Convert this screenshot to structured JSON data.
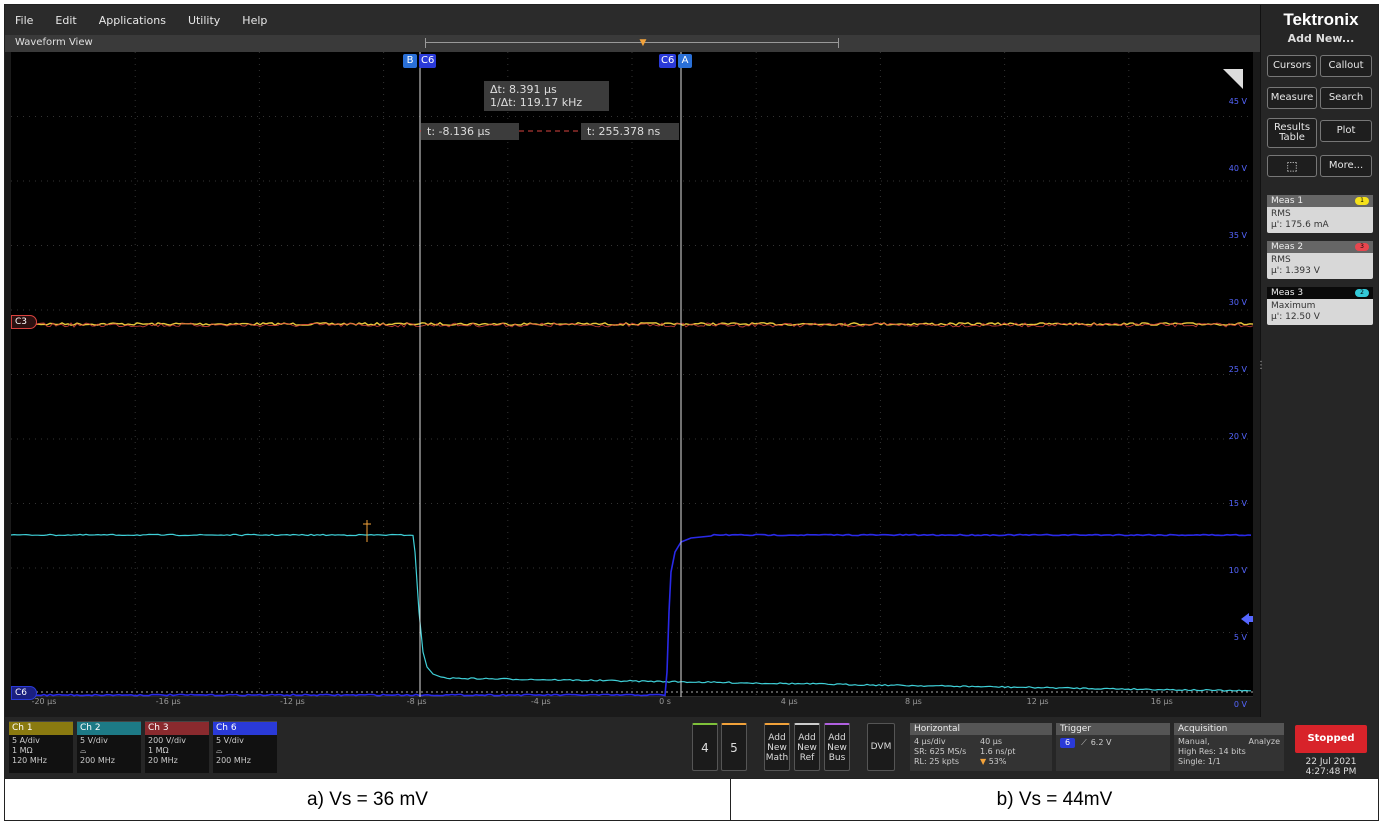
{
  "menu": [
    "File",
    "Edit",
    "Applications",
    "Utility",
    "Help"
  ],
  "waveform_view": {
    "title": "Waveform View"
  },
  "cursors": {
    "b_label": "B",
    "a_label": "A",
    "source_label": "C6",
    "delta_t": "Δt: 8.391 µs",
    "inv_delta_t": "1/Δt: 119.17 kHz",
    "t_left": "t: -8.136 µs",
    "t_right": "t: 255.378 ns"
  },
  "channel_markers": {
    "c3": "C3",
    "c6": "C6"
  },
  "x_ticks": [
    "-20 µs",
    "-16 µs",
    "-12 µs",
    "-8 µs",
    "-4 µs",
    "0 s",
    "4 µs",
    "8 µs",
    "12 µs",
    "16 µs"
  ],
  "v_labels": [
    "45 V",
    "40 V",
    "35 V",
    "30 V",
    "25 V",
    "20 V",
    "15 V",
    "10 V",
    "5 V",
    "0 V"
  ],
  "side": {
    "brand": "Tektronix",
    "add_new": "Add New...",
    "buttons": {
      "cursors": "Cursors",
      "callout": "Callout",
      "measure": "Measure",
      "search": "Search",
      "results_table_1": "Results",
      "results_table_2": "Table",
      "plot": "Plot",
      "more": "More..."
    },
    "measurements": [
      {
        "name": "Meas 1",
        "badge": "1",
        "type": "RMS",
        "value": "µ': 175.6 mA",
        "color": "#f5e11a"
      },
      {
        "name": "Meas 2",
        "badge": "3",
        "type": "RMS",
        "value": "µ': 1.393 V",
        "color": "#e8464e"
      },
      {
        "name": "Meas 3",
        "badge": "2",
        "type": "Maximum",
        "value": "µ': 12.50 V",
        "color": "#33c9d8"
      }
    ]
  },
  "channels": [
    {
      "name": "Ch 1",
      "scale": "5 A/div",
      "coupling": "1 MΩ",
      "bw": "120 MHz",
      "color": "#8a7a10"
    },
    {
      "name": "Ch 2",
      "scale": "5 V/div",
      "coupling": "",
      "bw": "200 MHz",
      "color": "#1d7a86"
    },
    {
      "name": "Ch 3",
      "scale": "200 V/div",
      "coupling": "1 MΩ",
      "bw": "20 MHz",
      "color": "#8a2a2e"
    },
    {
      "name": "Ch 6",
      "scale": "5 V/div",
      "coupling": "",
      "bw": "200 MHz",
      "color": "#2a3ad8"
    }
  ],
  "bottom_buttons": {
    "ch4": "4",
    "ch5": "5",
    "add_math": [
      "Add",
      "New",
      "Math"
    ],
    "add_ref": [
      "Add",
      "New",
      "Ref"
    ],
    "add_bus": [
      "Add",
      "New",
      "Bus"
    ],
    "dvm": "DVM"
  },
  "horizontal": {
    "title": "Horizontal",
    "scale": "4 µs/div",
    "duration": "40 µs",
    "sample_rate": "SR: 625 MS/s",
    "resolution": "1.6 ns/pt",
    "record_length": "RL: 25 kpts",
    "position": "53%"
  },
  "trigger": {
    "title": "Trigger",
    "source": "6",
    "level": "6.2 V"
  },
  "acquisition": {
    "title": "Acquisition",
    "mode": "Manual,",
    "analyze": "Analyze",
    "high_res": "High Res: 14 bits",
    "single": "Single: 1/1"
  },
  "status": {
    "state": "Stopped",
    "date": "22 Jul 2021",
    "time": "4:27:48 PM"
  },
  "captions": {
    "left": "a) Vs = 36 mV",
    "right": "b) Vs = 44mV"
  }
}
